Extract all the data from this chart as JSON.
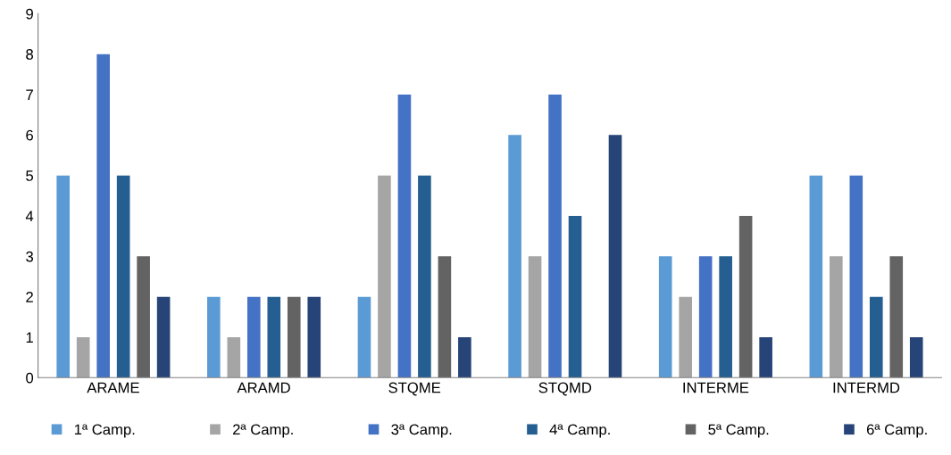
{
  "chart_data": {
    "type": "bar",
    "categories": [
      "ARAME",
      "ARAMD",
      "STQME",
      "STQMD",
      "INTERME",
      "INTERMD"
    ],
    "series": [
      {
        "name": "1ª Camp.",
        "color": "#5b9bd5",
        "values": [
          5,
          2,
          2,
          6,
          3,
          5
        ]
      },
      {
        "name": "2ª Camp.",
        "color": "#a5a5a5",
        "values": [
          1,
          1,
          5,
          3,
          2,
          3
        ]
      },
      {
        "name": "3ª Camp.",
        "color": "#4472c4",
        "values": [
          8,
          2,
          7,
          7,
          3,
          5
        ]
      },
      {
        "name": "4ª Camp.",
        "color": "#255e91",
        "values": [
          5,
          2,
          5,
          4,
          3,
          2
        ]
      },
      {
        "name": "5ª Camp.",
        "color": "#636363",
        "values": [
          3,
          2,
          3,
          0,
          4,
          3
        ]
      },
      {
        "name": "6ª Camp.",
        "color": "#264478",
        "values": [
          2,
          2,
          1,
          6,
          1,
          1
        ]
      }
    ],
    "ylim": [
      0,
      9
    ],
    "yticks": [
      0,
      1,
      2,
      3,
      4,
      5,
      6,
      7,
      8,
      9
    ],
    "grid": false,
    "legend": "bottom"
  }
}
